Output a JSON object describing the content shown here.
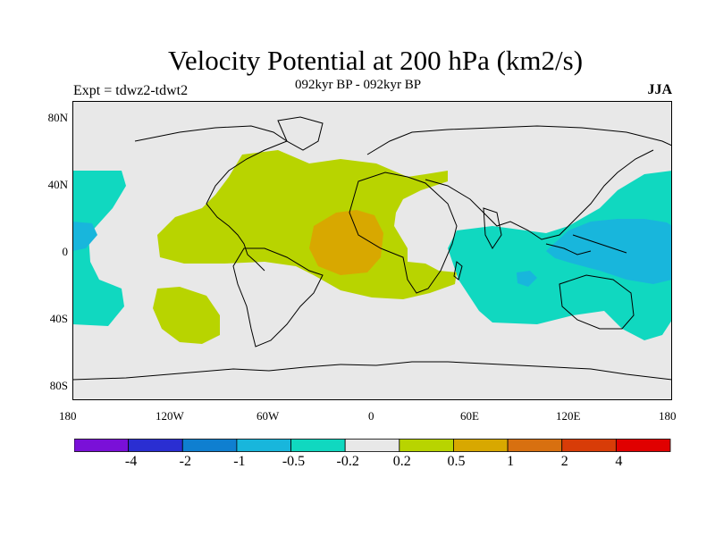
{
  "figure": {
    "title": "Velocity Potential at 200 hPa (km2/s)",
    "subtitle": "092kyr BP - 092kyr BP",
    "experiment": "Expt = tdwz2-tdwt2",
    "season": "JJA"
  },
  "axes": {
    "x_ticks": [
      "180",
      "120W",
      "60W",
      "0",
      "60E",
      "120E",
      "180"
    ],
    "y_ticks": [
      "80N",
      "40N",
      "0",
      "40S",
      "80S"
    ]
  },
  "colorbar": {
    "labels": [
      "-4",
      "-2",
      "-1",
      "-0.5",
      "-0.2",
      "0.2",
      "0.5",
      "1",
      "2",
      "4"
    ],
    "colors": [
      "#7a10d8",
      "#2a2ed2",
      "#0f7fd0",
      "#18b6dc",
      "#10d8c0",
      "#e8e8e8",
      "#b8d400",
      "#d8a800",
      "#d87010",
      "#d83c08",
      "#e00000"
    ]
  },
  "map_colors": {
    "neutral": "#e8e8e8",
    "neg_02": "#10d8c0",
    "neg_05": "#18b6dc",
    "pos_02": "#b8d400",
    "pos_05": "#d8a800"
  }
}
